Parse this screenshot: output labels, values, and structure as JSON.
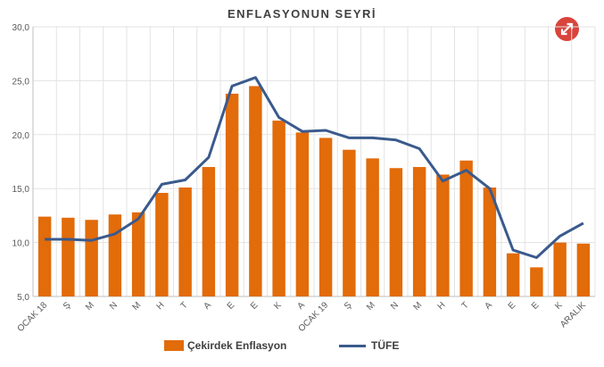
{
  "chart_data": {
    "type": "bar",
    "title": "ENFLASYONUN SEYRİ",
    "xlabel": "",
    "ylabel": "",
    "ylim": [
      5,
      30
    ],
    "yticks": [
      "5,0",
      "10,0",
      "15,0",
      "20,0",
      "25,0",
      "30,0"
    ],
    "ytick_values": [
      5,
      10,
      15,
      20,
      25,
      30
    ],
    "categories": [
      "OCAK 18",
      "Ş",
      "M",
      "N",
      "M",
      "H",
      "T",
      "A",
      "E",
      "E",
      "K",
      "A",
      "OCAK 19",
      "Ş",
      "M",
      "N",
      "M",
      "H",
      "T",
      "A",
      "E",
      "E",
      "K",
      "ARALIK"
    ],
    "series": [
      {
        "name": "Çekirdek Enflasyon",
        "type": "bar",
        "color": "#e26b0a",
        "values": [
          12.4,
          12.3,
          12.1,
          12.6,
          12.8,
          14.6,
          15.1,
          17.0,
          23.8,
          24.5,
          21.3,
          20.2,
          19.7,
          18.6,
          17.8,
          16.9,
          17.0,
          16.3,
          17.6,
          15.1,
          9.0,
          7.7,
          10.0,
          9.9
        ]
      },
      {
        "name": "TÜFE",
        "type": "line",
        "color": "#3a5a8c",
        "values": [
          10.3,
          10.3,
          10.2,
          10.8,
          12.2,
          15.4,
          15.8,
          17.9,
          24.5,
          25.3,
          21.6,
          20.3,
          20.4,
          19.7,
          19.7,
          19.5,
          18.7,
          15.7,
          16.7,
          15.0,
          9.3,
          8.6,
          10.6,
          11.8
        ]
      }
    ],
    "grid": true,
    "legend": "bottom"
  },
  "ui": {
    "expand_icon": "expand-arrows-icon",
    "accent": "#d9443c"
  }
}
